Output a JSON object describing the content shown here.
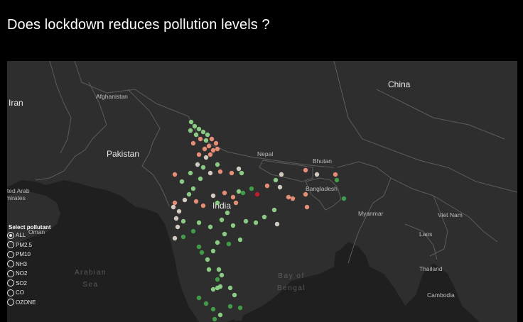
{
  "title": "Does lockdown reduces pollution levels ?",
  "map": {
    "labels": {
      "china": "China",
      "iran": "Iran",
      "afghanistan": "Afghanistan",
      "pakistan": "Pakistan",
      "nepal": "Nepal",
      "bhutan": "Bhutan",
      "bangladesh": "Bangladesh",
      "india": "India",
      "myanmar": "Myanmar",
      "vietnam": "Viet Nam",
      "laos": "Laos",
      "thailand": "Thailand",
      "cambodia": "Cambodia",
      "uae": "ited Arab\nmirates",
      "oman": "Oman",
      "arabian_sea": "Arabian\nSea",
      "bay_of_bengal": "Bay of\nBengal"
    },
    "colors": {
      "background": "#282828",
      "land": "#2e2e2e",
      "water": "#1f1f1f",
      "border": "#5c5c5c",
      "reduced_strong": "#41a24a",
      "reduced": "#8fd488",
      "neutral": "#d9d3c8",
      "increased": "#f0927a",
      "increased_strong": "#c81d2a"
    }
  },
  "filter": {
    "title": "Select pollutant",
    "selected": "ALL",
    "options": [
      "ALL",
      "PM2.5",
      "PM10",
      "NH3",
      "NO2",
      "SO2",
      "CO",
      "OZONE"
    ]
  }
}
